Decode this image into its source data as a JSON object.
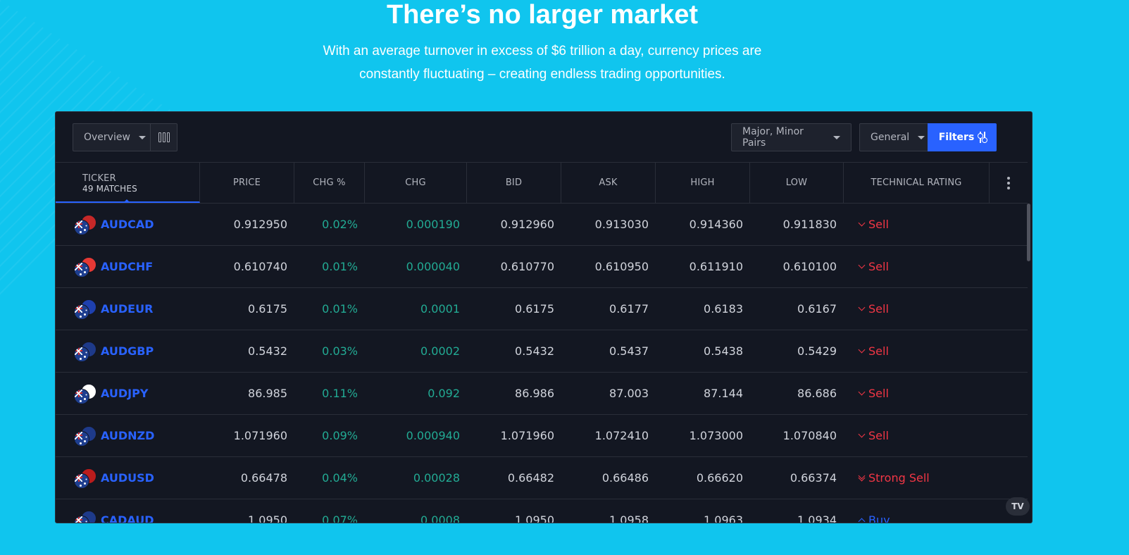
{
  "hero": {
    "title": "There’s no larger market",
    "subtitle_line1": "With an average turnover in excess of $6 trillion a day, currency prices are",
    "subtitle_line2": "constantly fluctuating – creating endless trading opportunities."
  },
  "toolbar": {
    "overview_label": "Overview",
    "pairs_label": "Major, Minor Pairs",
    "general_label": "General",
    "filters_label": "Filters"
  },
  "table": {
    "ticker_header": "TICKER",
    "matches": "49 MATCHES",
    "headers": [
      "PRICE",
      "CHG %",
      "CHG",
      "BID",
      "ASK",
      "HIGH",
      "LOW",
      "TECHNICAL RATING"
    ],
    "rows": [
      {
        "symbol": "AUDCAD",
        "price": "0.912950",
        "chg_pct": "0.02%",
        "chg": "0.000190",
        "bid": "0.912960",
        "ask": "0.913030",
        "high": "0.914360",
        "low": "0.911830",
        "rating": "Sell",
        "quote_flag": "#c62828"
      },
      {
        "symbol": "AUDCHF",
        "price": "0.610740",
        "chg_pct": "0.01%",
        "chg": "0.000040",
        "bid": "0.610770",
        "ask": "0.610950",
        "high": "0.611910",
        "low": "0.610100",
        "rating": "Sell",
        "quote_flag": "#e53935"
      },
      {
        "symbol": "AUDEUR",
        "price": "0.6175",
        "chg_pct": "0.01%",
        "chg": "0.0001",
        "bid": "0.6175",
        "ask": "0.6177",
        "high": "0.6183",
        "low": "0.6167",
        "rating": "Sell",
        "quote_flag": "#1e40af"
      },
      {
        "symbol": "AUDGBP",
        "price": "0.5432",
        "chg_pct": "0.03%",
        "chg": "0.0002",
        "bid": "0.5432",
        "ask": "0.5437",
        "high": "0.5438",
        "low": "0.5429",
        "rating": "Sell",
        "quote_flag": "#1e3a8a"
      },
      {
        "symbol": "AUDJPY",
        "price": "86.985",
        "chg_pct": "0.11%",
        "chg": "0.092",
        "bid": "86.986",
        "ask": "87.003",
        "high": "87.144",
        "low": "86.686",
        "rating": "Sell",
        "quote_flag": "#ffffff"
      },
      {
        "symbol": "AUDNZD",
        "price": "1.071960",
        "chg_pct": "0.09%",
        "chg": "0.000940",
        "bid": "1.071960",
        "ask": "1.072410",
        "high": "1.073000",
        "low": "1.070840",
        "rating": "Sell",
        "quote_flag": "#1e3a8a"
      },
      {
        "symbol": "AUDUSD",
        "price": "0.66478",
        "chg_pct": "0.04%",
        "chg": "0.00028",
        "bid": "0.66482",
        "ask": "0.66486",
        "high": "0.66620",
        "low": "0.66374",
        "rating": "Strong Sell",
        "quote_flag": "#b91c1c"
      },
      {
        "symbol": "CADAUD",
        "price": "1.0950",
        "chg_pct": "0.07%",
        "chg": "0.0008",
        "bid": "1.0950",
        "ask": "1.0958",
        "high": "1.0963",
        "low": "1.0934",
        "rating": "Buy",
        "quote_flag": "#1e3a8a"
      }
    ]
  },
  "logo_text": "TV"
}
